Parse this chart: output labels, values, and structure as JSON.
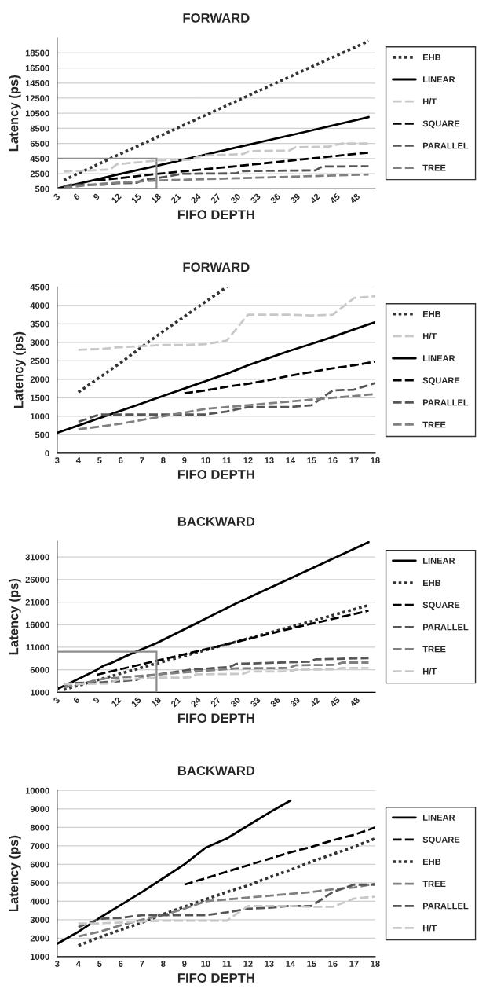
{
  "chart_data": [
    {
      "type": "line",
      "title": "FORWARD",
      "xlabel": "FIFO DEPTH",
      "ylabel": "Latency (ps)",
      "xlim": [
        3,
        51
      ],
      "xticks": [
        3,
        6,
        9,
        12,
        15,
        18,
        21,
        24,
        27,
        30,
        33,
        36,
        39,
        42,
        45,
        48
      ],
      "ylim": [
        500,
        20500
      ],
      "yticks": [
        500,
        2500,
        4500,
        6500,
        8500,
        10500,
        12500,
        14500,
        16500,
        18500
      ],
      "grid": "y",
      "legend": "right",
      "series": [
        {
          "name": "EHB",
          "color": "#333333",
          "line_style": "dotted",
          "x": [
            4,
            11,
            20,
            30,
            40,
            50
          ],
          "values": [
            1650,
            4500,
            8100,
            12100,
            16100,
            20050
          ]
        },
        {
          "name": "LINEAR",
          "color": "#000000",
          "line_style": "solid",
          "x": [
            3,
            8,
            12,
            18,
            30,
            40,
            50
          ],
          "values": [
            550,
            1550,
            2380,
            3550,
            5950,
            7950,
            10000
          ]
        },
        {
          "name": "H/T",
          "color": "#c8c8c8",
          "line_style": "dashed",
          "x": [
            4,
            11,
            12,
            18,
            19,
            23,
            25,
            31,
            32,
            38,
            39,
            44,
            46,
            50
          ],
          "values": [
            2800,
            3050,
            3750,
            4250,
            4300,
            4350,
            4900,
            5100,
            5500,
            5550,
            6000,
            6100,
            6500,
            6500
          ]
        },
        {
          "name": "SQUARE",
          "color": "#000000",
          "line_style": "dashed",
          "x": [
            9,
            12,
            18,
            30,
            40,
            50
          ],
          "values": [
            1620,
            1880,
            2480,
            3500,
            4400,
            5300
          ]
        },
        {
          "name": "PARALLEL",
          "color": "#555555",
          "line_style": "dashed",
          "x": [
            4,
            5,
            10,
            12,
            15,
            16,
            18,
            20,
            22,
            30,
            31,
            42,
            43,
            50
          ],
          "values": [
            850,
            1050,
            1050,
            1250,
            1300,
            1700,
            1900,
            2200,
            2500,
            2550,
            2850,
            2950,
            3450,
            3500
          ]
        },
        {
          "name": "TREE",
          "color": "#808080",
          "line_style": "dashed",
          "x": [
            4,
            10,
            18,
            24,
            30,
            40,
            50
          ],
          "values": [
            650,
            1200,
            1600,
            1750,
            1900,
            2150,
            2400
          ]
        }
      ]
    },
    {
      "type": "line",
      "title": "FORWARD",
      "xlabel": "FIFO DEPTH",
      "ylabel": "Latency (ps)",
      "xlim": [
        3,
        18
      ],
      "xticks": [
        3,
        4,
        5,
        6,
        7,
        8,
        9,
        10,
        11,
        12,
        13,
        14,
        15,
        16,
        17,
        18
      ],
      "ylim": [
        0,
        4500
      ],
      "yticks": [
        0,
        500,
        1000,
        1500,
        2000,
        2500,
        3000,
        3500,
        4000,
        4500
      ],
      "grid": "y",
      "legend": "right",
      "series": [
        {
          "name": "EHB",
          "color": "#333333",
          "line_style": "dotted",
          "x": [
            4,
            5,
            6,
            7,
            8,
            9,
            10,
            11
          ],
          "values": [
            1650,
            2050,
            2450,
            2880,
            3300,
            3700,
            4100,
            4500
          ]
        },
        {
          "name": "H/T",
          "color": "#c8c8c8",
          "line_style": "dashed",
          "x": [
            4,
            5,
            6,
            7,
            8,
            9,
            10,
            11,
            12,
            13,
            14,
            15,
            16,
            17,
            18
          ],
          "values": [
            2800,
            2820,
            2870,
            2900,
            2930,
            2930,
            2950,
            3050,
            3750,
            3750,
            3750,
            3730,
            3750,
            4200,
            4250
          ]
        },
        {
          "name": "LINEAR",
          "color": "#000000",
          "line_style": "solid",
          "x": [
            3,
            4,
            5,
            6,
            7,
            8,
            9,
            10,
            11,
            12,
            13,
            14,
            15,
            16,
            17,
            18
          ],
          "values": [
            550,
            750,
            950,
            1150,
            1350,
            1550,
            1750,
            1950,
            2150,
            2380,
            2580,
            2780,
            2960,
            3150,
            3350,
            3550
          ]
        },
        {
          "name": "SQUARE",
          "color": "#000000",
          "line_style": "dashed",
          "x": [
            9,
            10,
            11,
            12,
            13,
            14,
            15,
            16,
            17,
            18
          ],
          "values": [
            1620,
            1700,
            1800,
            1880,
            1980,
            2100,
            2200,
            2300,
            2380,
            2480
          ]
        },
        {
          "name": "PARALLEL",
          "color": "#555555",
          "line_style": "dashed",
          "x": [
            4,
            5,
            6,
            7,
            8,
            9,
            10,
            11,
            12,
            13,
            14,
            15,
            16,
            17,
            18
          ],
          "values": [
            850,
            1050,
            1050,
            1050,
            1050,
            1050,
            1050,
            1130,
            1250,
            1250,
            1250,
            1300,
            1700,
            1720,
            1900
          ]
        },
        {
          "name": "TREE",
          "color": "#808080",
          "line_style": "dashed",
          "x": [
            4,
            5,
            6,
            7,
            8,
            9,
            10,
            11,
            12,
            13,
            14,
            15,
            16,
            17,
            18
          ],
          "values": [
            650,
            720,
            800,
            900,
            1000,
            1100,
            1200,
            1250,
            1300,
            1350,
            1400,
            1450,
            1500,
            1550,
            1600
          ]
        }
      ]
    },
    {
      "type": "line",
      "title": "BACKWARD",
      "xlabel": "FIFO DEPTH",
      "ylabel": "Latency (ps)",
      "xlim": [
        3,
        51
      ],
      "xticks": [
        3,
        6,
        9,
        12,
        15,
        18,
        21,
        24,
        27,
        30,
        33,
        36,
        39,
        42,
        45,
        48
      ],
      "ylim": [
        1000,
        34500
      ],
      "yticks": [
        1000,
        6000,
        11000,
        16000,
        21000,
        26000,
        31000
      ],
      "grid": "y",
      "legend": "right",
      "series": [
        {
          "name": "LINEAR",
          "color": "#000000",
          "line_style": "solid",
          "x": [
            3,
            5,
            9,
            10,
            11,
            14,
            18,
            30,
            50
          ],
          "values": [
            1700,
            3100,
            6000,
            6900,
            7400,
            9450,
            11900,
            20700,
            34300
          ]
        },
        {
          "name": "EHB",
          "color": "#333333",
          "line_style": "dotted",
          "x": [
            4,
            10,
            18,
            27,
            39,
            50
          ],
          "values": [
            1600,
            4100,
            7400,
            11000,
            15800,
            20300
          ]
        },
        {
          "name": "SQUARE",
          "color": "#000000",
          "line_style": "dashed",
          "x": [
            9,
            18,
            27,
            39,
            50
          ],
          "values": [
            4900,
            8000,
            11100,
            15400,
            19100
          ]
        },
        {
          "name": "PARALLEL",
          "color": "#555555",
          "line_style": "dashed",
          "x": [
            4,
            5,
            10,
            15,
            16,
            18,
            23,
            29,
            30,
            41,
            42,
            50
          ],
          "values": [
            2600,
            3050,
            3250,
            3750,
            4500,
            4900,
            6000,
            6600,
            7300,
            7800,
            8300,
            8600
          ]
        },
        {
          "name": "TREE",
          "color": "#808080",
          "line_style": "dashed",
          "x": [
            4,
            10,
            18,
            30,
            38,
            39,
            45,
            46,
            50
          ],
          "values": [
            2100,
            4000,
            4950,
            6300,
            6400,
            7000,
            7100,
            7600,
            7600
          ]
        },
        {
          "name": "H/T",
          "color": "#c8c8c8",
          "line_style": "dashed",
          "x": [
            4,
            11,
            12,
            17,
            18,
            23,
            24,
            31,
            32,
            38,
            39,
            45,
            46,
            50
          ],
          "values": [
            2800,
            2950,
            3750,
            4150,
            4250,
            4300,
            5000,
            5100,
            5600,
            5650,
            6000,
            6100,
            6400,
            6400
          ]
        }
      ]
    },
    {
      "type": "line",
      "title": "BACKWARD",
      "xlabel": "FIFO DEPTH",
      "ylabel": "Latency (ps)",
      "xlim": [
        3,
        18
      ],
      "xticks": [
        3,
        4,
        5,
        6,
        7,
        8,
        9,
        10,
        11,
        12,
        13,
        14,
        15,
        16,
        17,
        18
      ],
      "ylim": [
        1000,
        10000
      ],
      "yticks": [
        1000,
        2000,
        3000,
        4000,
        5000,
        6000,
        7000,
        8000,
        9000,
        10000
      ],
      "grid": "y",
      "legend": "right",
      "series": [
        {
          "name": "LINEAR",
          "color": "#000000",
          "line_style": "solid",
          "x": [
            3,
            4,
            5,
            6,
            7,
            8,
            9,
            10,
            11,
            12,
            13,
            14
          ],
          "values": [
            1700,
            2350,
            3100,
            3800,
            4500,
            5250,
            6000,
            6900,
            7400,
            8100,
            8800,
            9450
          ]
        },
        {
          "name": "SQUARE",
          "color": "#000000",
          "line_style": "dashed",
          "x": [
            9,
            10,
            11,
            12,
            13,
            14,
            15,
            16,
            17,
            18
          ],
          "values": [
            4900,
            5250,
            5600,
            5950,
            6300,
            6650,
            6950,
            7300,
            7600,
            8000
          ]
        },
        {
          "name": "EHB",
          "color": "#333333",
          "line_style": "dotted",
          "x": [
            4,
            5,
            6,
            7,
            8,
            9,
            10,
            11,
            12,
            13,
            14,
            15,
            16,
            17,
            18
          ],
          "values": [
            1600,
            2050,
            2450,
            2850,
            3300,
            3700,
            4100,
            4500,
            4850,
            5300,
            5700,
            6150,
            6550,
            6950,
            7400
          ]
        },
        {
          "name": "TREE",
          "color": "#808080",
          "line_style": "dashed",
          "x": [
            4,
            5,
            6,
            7,
            8,
            9,
            10,
            11,
            12,
            13,
            14,
            15,
            16,
            17,
            18
          ],
          "values": [
            2100,
            2350,
            2700,
            3000,
            3250,
            3600,
            4000,
            4100,
            4200,
            4300,
            4400,
            4500,
            4650,
            4750,
            4950
          ]
        },
        {
          "name": "PARALLEL",
          "color": "#555555",
          "line_style": "dashed",
          "x": [
            4,
            5,
            6,
            7,
            8,
            9,
            10,
            11,
            12,
            13,
            14,
            15,
            16,
            17,
            18
          ],
          "values": [
            2600,
            3050,
            3100,
            3250,
            3250,
            3250,
            3250,
            3400,
            3600,
            3650,
            3750,
            3750,
            4500,
            4900,
            4900
          ]
        },
        {
          "name": "H/T",
          "color": "#c8c8c8",
          "line_style": "dashed",
          "x": [
            4,
            5,
            6,
            7,
            8,
            9,
            10,
            11,
            12,
            13,
            14,
            15,
            16,
            17,
            18
          ],
          "values": [
            2800,
            2800,
            2850,
            2900,
            2950,
            2950,
            2950,
            2950,
            3750,
            3750,
            3750,
            3700,
            3700,
            4150,
            4250
          ]
        }
      ]
    }
  ]
}
